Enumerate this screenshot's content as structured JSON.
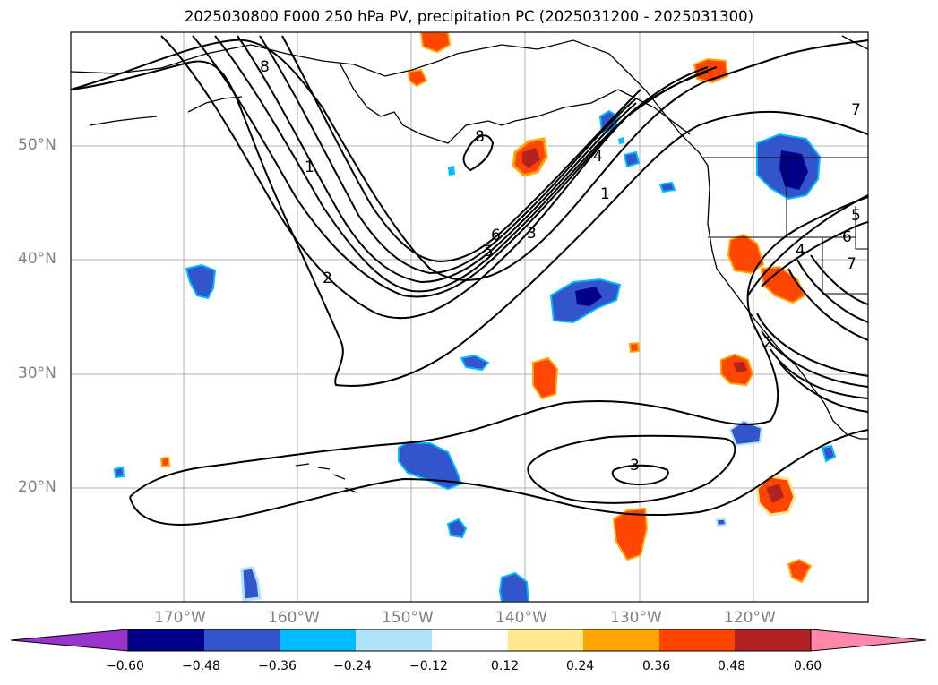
{
  "title": "2025030800 F000 250 hPa PV, precipitation PC (2025031200 - 2025031300)",
  "lat_labels": [
    "50°N",
    "40°N",
    "30°N",
    "20°N"
  ],
  "lon_labels": [
    "170°W",
    "160°W",
    "150°W",
    "140°W",
    "130°W",
    "120°W"
  ],
  "contour_labels": [
    "8",
    "8",
    "7",
    "6",
    "5",
    "4",
    "3",
    "3",
    "2",
    "1",
    "1",
    "2",
    "4",
    "6",
    "7",
    "5"
  ],
  "colorbar": {
    "ticks": [
      "−0.60",
      "−0.48",
      "−0.36",
      "−0.24",
      "−0.12",
      "0.12",
      "0.24",
      "0.36",
      "0.48",
      "0.60"
    ],
    "colors": [
      "#9933cc",
      "#00008b",
      "#3355cc",
      "#00bbff",
      "#aee3fb",
      "#ffffff",
      "#ffe78c",
      "#ffa500",
      "#ff4500",
      "#b22222",
      "#ff88aa"
    ]
  },
  "colors": {
    "neg_strong": "#00008b",
    "neg_mid": "#3355cc",
    "neg_light": "#00bbff",
    "neg_pale": "#aee3fb",
    "pos_pale": "#ffe78c",
    "pos_light": "#ffa500",
    "pos_mid": "#ff4500",
    "pos_strong": "#b22222",
    "grid": "#b0b0b0"
  }
}
